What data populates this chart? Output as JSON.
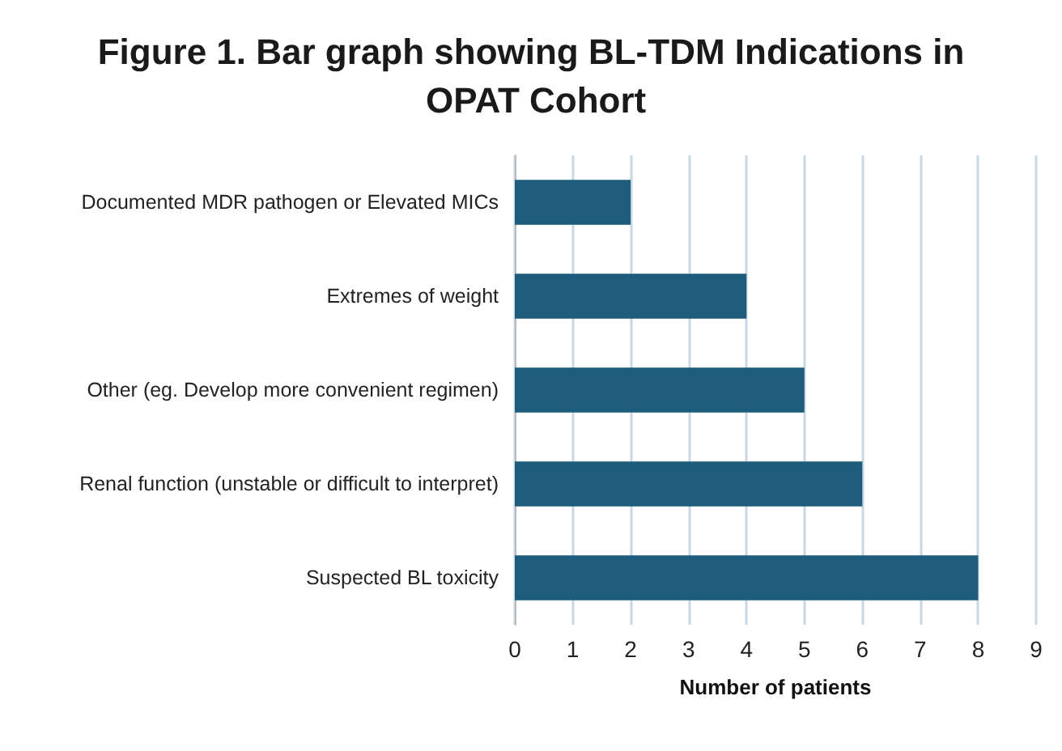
{
  "chart_data": {
    "type": "bar",
    "orientation": "horizontal",
    "title": "Figure 1. Bar graph showing BL-TDM Indications in OPAT Cohort",
    "xlabel": "Number of patients",
    "categories": [
      "Documented MDR pathogen or Elevated MICs",
      "Extremes of weight",
      "Other (eg. Develop more convenient regimen)",
      "Renal function (unstable or difficult to interpret)",
      "Suspected BL toxicity"
    ],
    "values": [
      2,
      4,
      5,
      6,
      8
    ],
    "color": "#1d5c7d",
    "xlim": [
      0,
      9
    ],
    "xticks": [
      0,
      1,
      2,
      3,
      4,
      5,
      6,
      7,
      8,
      9
    ],
    "grid": "x"
  }
}
